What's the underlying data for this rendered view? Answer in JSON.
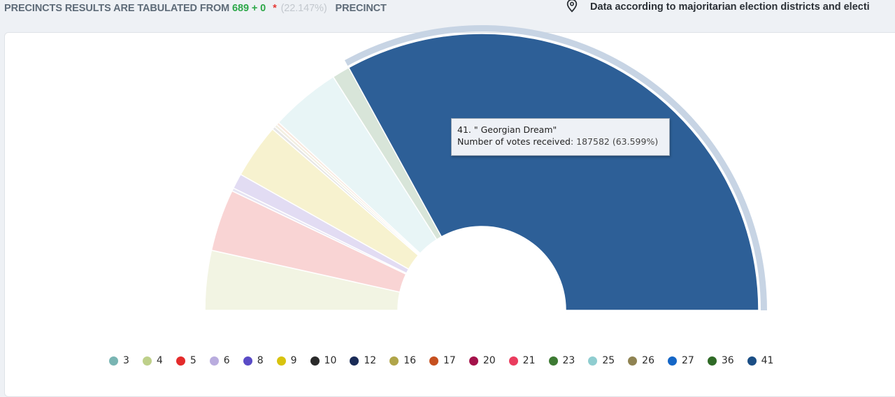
{
  "header": {
    "prefix": "PRECINCTS RESULTS ARE TABULATED FROM",
    "count": "689 + 0",
    "star": "*",
    "percent": "(22.147%)",
    "suffix": "PRECINCT"
  },
  "source_note": {
    "icon": "map-pin-icon",
    "text": "Data according to majoritarian election districts and electi"
  },
  "tooltip": {
    "title": "41. \" Georgian Dream\"",
    "label": "Number of votes received",
    "value": ": 187582 (63.599%)"
  },
  "chart_data": {
    "type": "pie",
    "subtype": "semi-donut",
    "highlighted": "41",
    "series": [
      {
        "name": "3",
        "percent": 6.72,
        "color": "#f2f4e3"
      },
      {
        "name": "5",
        "percent": 6.98,
        "color": "#f9d4d4"
      },
      {
        "name": "8",
        "percent": 0.35,
        "color": "#e6e4f3"
      },
      {
        "name": "6",
        "percent": 1.71,
        "color": "#e2dcf3"
      },
      {
        "name": "9",
        "percent": 6.16,
        "color": "#f7f2cf"
      },
      {
        "name": "10",
        "percent": 0.35,
        "color": "#e6e6e6"
      },
      {
        "name": "16",
        "percent": 0.33,
        "color": "#f2efe1"
      },
      {
        "name": "17",
        "percent": 0.32,
        "color": "#f8e8de"
      },
      {
        "name": "25",
        "percent": 7.91,
        "color": "#e8f5f6"
      },
      {
        "name": "23",
        "percent": 2.0,
        "color": "#d8e5d9"
      },
      {
        "name": "41",
        "percent": 63.599,
        "votes": 187582,
        "color": "#2d5f97"
      }
    ],
    "legend": [
      {
        "label": "3",
        "color": "#79b5b3"
      },
      {
        "label": "4",
        "color": "#bed08a"
      },
      {
        "label": "5",
        "color": "#e42b2b"
      },
      {
        "label": "6",
        "color": "#b9acde"
      },
      {
        "label": "8",
        "color": "#5a4bc6"
      },
      {
        "label": "9",
        "color": "#d8c30e"
      },
      {
        "label": "10",
        "color": "#2a2a2a"
      },
      {
        "label": "12",
        "color": "#1a2b57"
      },
      {
        "label": "16",
        "color": "#b0a549"
      },
      {
        "label": "17",
        "color": "#c6501f"
      },
      {
        "label": "20",
        "color": "#a3114a"
      },
      {
        "label": "21",
        "color": "#ea3c5e"
      },
      {
        "label": "23",
        "color": "#3d7a33"
      },
      {
        "label": "25",
        "color": "#8fcdd0"
      },
      {
        "label": "26",
        "color": "#8f8352"
      },
      {
        "label": "27",
        "color": "#1566c6"
      },
      {
        "label": "36",
        "color": "#2f6a26"
      },
      {
        "label": "41",
        "color": "#1b4e85"
      }
    ]
  }
}
